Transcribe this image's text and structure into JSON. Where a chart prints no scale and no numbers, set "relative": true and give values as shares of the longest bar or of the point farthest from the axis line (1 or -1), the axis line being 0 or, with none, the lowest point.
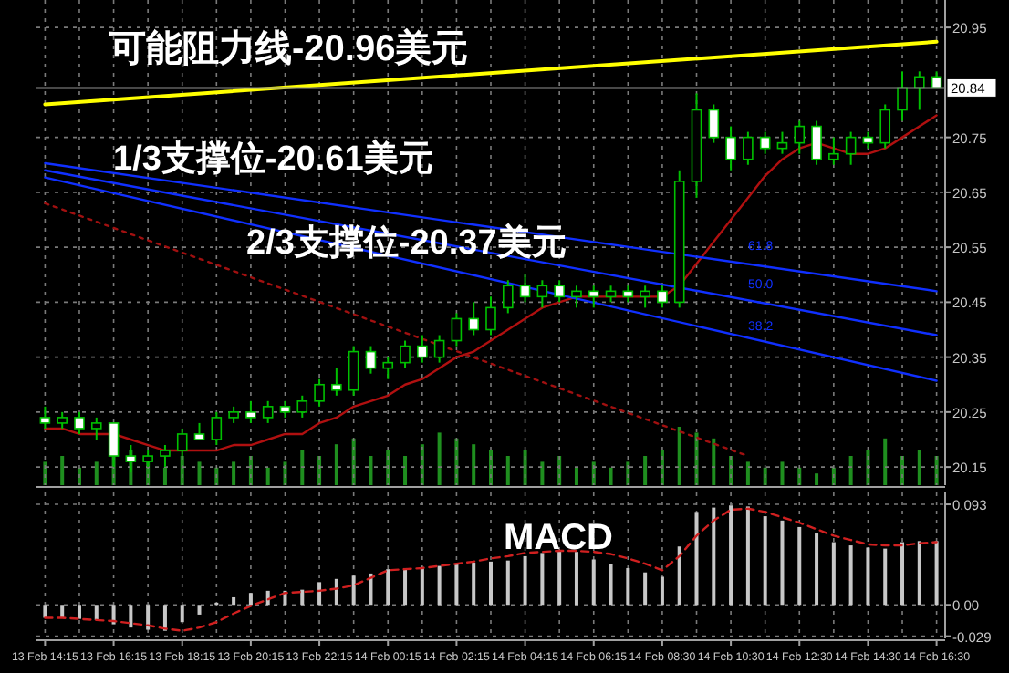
{
  "chart_data": [
    {
      "type": "candlestick",
      "color": "#00c000",
      "ohlc": [
        [
          20.24,
          20.26,
          20.22,
          20.23
        ],
        [
          20.23,
          20.25,
          20.22,
          20.24
        ],
        [
          20.24,
          20.25,
          20.21,
          20.22
        ],
        [
          20.22,
          20.24,
          20.2,
          20.23
        ],
        [
          20.23,
          20.23,
          20.15,
          20.17
        ],
        [
          20.17,
          20.19,
          20.14,
          20.16
        ],
        [
          20.16,
          20.18,
          20.15,
          20.17
        ],
        [
          20.17,
          20.19,
          20.15,
          20.18
        ],
        [
          20.18,
          20.22,
          20.17,
          20.21
        ],
        [
          20.21,
          20.23,
          20.2,
          20.2
        ],
        [
          20.2,
          20.25,
          20.19,
          20.24
        ],
        [
          20.24,
          20.26,
          20.23,
          20.25
        ],
        [
          20.25,
          20.27,
          20.23,
          20.24
        ],
        [
          20.24,
          20.27,
          20.23,
          20.26
        ],
        [
          20.26,
          20.27,
          20.24,
          20.25
        ],
        [
          20.25,
          20.28,
          20.24,
          20.27
        ],
        [
          20.27,
          20.31,
          20.26,
          20.3
        ],
        [
          20.3,
          20.33,
          20.28,
          20.29
        ],
        [
          20.29,
          20.37,
          20.28,
          20.36
        ],
        [
          20.36,
          20.37,
          20.32,
          20.33
        ],
        [
          20.33,
          20.35,
          20.31,
          20.34
        ],
        [
          20.34,
          20.38,
          20.33,
          20.37
        ],
        [
          20.37,
          20.39,
          20.34,
          20.35
        ],
        [
          20.35,
          20.39,
          20.34,
          20.38
        ],
        [
          20.38,
          20.43,
          20.37,
          20.42
        ],
        [
          20.42,
          20.45,
          20.39,
          20.4
        ],
        [
          20.4,
          20.46,
          20.39,
          20.44
        ],
        [
          20.44,
          20.49,
          20.43,
          20.48
        ],
        [
          20.48,
          20.5,
          20.45,
          20.46
        ],
        [
          20.46,
          20.49,
          20.44,
          20.48
        ],
        [
          20.48,
          20.49,
          20.45,
          20.46
        ],
        [
          20.46,
          20.48,
          20.44,
          20.47
        ],
        [
          20.47,
          20.48,
          20.44,
          20.46
        ],
        [
          20.46,
          20.48,
          20.45,
          20.47
        ],
        [
          20.47,
          20.48,
          20.45,
          20.46
        ],
        [
          20.46,
          20.48,
          20.44,
          20.47
        ],
        [
          20.47,
          20.48,
          20.44,
          20.45
        ],
        [
          20.45,
          20.69,
          20.44,
          20.67
        ],
        [
          20.67,
          20.83,
          20.64,
          20.8
        ],
        [
          20.8,
          20.81,
          20.74,
          20.75
        ],
        [
          20.75,
          20.77,
          20.69,
          20.71
        ],
        [
          20.71,
          20.76,
          20.7,
          20.75
        ],
        [
          20.75,
          20.76,
          20.72,
          20.73
        ],
        [
          20.73,
          20.76,
          20.72,
          20.74
        ],
        [
          20.74,
          20.78,
          20.72,
          20.77
        ],
        [
          20.77,
          20.78,
          20.7,
          20.71
        ],
        [
          20.71,
          20.75,
          20.7,
          20.72
        ],
        [
          20.72,
          20.76,
          20.7,
          20.75
        ],
        [
          20.75,
          20.76,
          20.73,
          20.74
        ],
        [
          20.74,
          20.81,
          20.73,
          20.8
        ],
        [
          20.8,
          20.87,
          20.78,
          20.84
        ],
        [
          20.84,
          20.87,
          20.8,
          20.86
        ],
        [
          20.86,
          20.87,
          20.84,
          20.84
        ]
      ],
      "series": [
        {
          "type": "line",
          "color": "#b01010",
          "line_style": "solid",
          "values": [
            20.22,
            20.22,
            20.21,
            20.21,
            20.21,
            20.2,
            20.19,
            20.18,
            20.18,
            20.18,
            20.18,
            20.19,
            20.19,
            20.2,
            20.21,
            20.21,
            20.23,
            20.24,
            20.26,
            20.27,
            20.28,
            20.3,
            20.31,
            20.33,
            20.35,
            20.36,
            20.38,
            20.4,
            20.42,
            20.44,
            20.45,
            20.46,
            20.46,
            20.46,
            20.46,
            20.46,
            20.46,
            20.48,
            20.52,
            20.56,
            20.6,
            20.64,
            20.68,
            20.71,
            20.73,
            20.74,
            20.73,
            20.72,
            20.72,
            20.73,
            20.75,
            20.77,
            20.79
          ]
        },
        {
          "type": "line",
          "color": "#ffff00",
          "line_style": "solid",
          "values": [
            20.81,
            null,
            null,
            null,
            null,
            null,
            null,
            null,
            null,
            null,
            null,
            null,
            null,
            null,
            null,
            null,
            null,
            null,
            null,
            null,
            null,
            null,
            null,
            null,
            null,
            null,
            null,
            null,
            null,
            null,
            null,
            null,
            null,
            null,
            null,
            null,
            null,
            null,
            null,
            null,
            null,
            null,
            null,
            null,
            null,
            null,
            null,
            null,
            null,
            null,
            null,
            null,
            20.924
          ]
        },
        {
          "type": "line",
          "color": "#1030ff",
          "line_style": "solid",
          "values": [
            20.703,
            null,
            null,
            null,
            null,
            null,
            null,
            null,
            null,
            null,
            null,
            null,
            null,
            null,
            null,
            null,
            null,
            null,
            null,
            null,
            null,
            null,
            null,
            null,
            null,
            null,
            null,
            null,
            null,
            null,
            null,
            null,
            null,
            null,
            null,
            null,
            null,
            null,
            null,
            null,
            null,
            null,
            null,
            null,
            null,
            null,
            null,
            null,
            null,
            null,
            null,
            null,
            20.47
          ]
        },
        {
          "type": "line",
          "color": "#1030ff",
          "line_style": "solid",
          "values": [
            20.69,
            null,
            null,
            null,
            null,
            null,
            null,
            null,
            null,
            null,
            null,
            null,
            null,
            null,
            null,
            null,
            null,
            null,
            null,
            null,
            null,
            null,
            null,
            null,
            null,
            null,
            null,
            null,
            null,
            null,
            null,
            null,
            null,
            null,
            null,
            null,
            null,
            null,
            null,
            null,
            null,
            null,
            null,
            null,
            null,
            null,
            null,
            null,
            null,
            null,
            null,
            null,
            20.39
          ]
        },
        {
          "type": "line",
          "color": "#1030ff",
          "line_style": "solid",
          "values": [
            20.677,
            null,
            null,
            null,
            null,
            null,
            null,
            null,
            null,
            null,
            null,
            null,
            null,
            null,
            null,
            null,
            null,
            null,
            null,
            null,
            null,
            null,
            null,
            null,
            null,
            null,
            null,
            null,
            null,
            null,
            null,
            null,
            null,
            null,
            null,
            null,
            null,
            null,
            null,
            null,
            null,
            null,
            null,
            null,
            null,
            null,
            null,
            null,
            null,
            null,
            null,
            null,
            20.307
          ]
        },
        {
          "type": "line",
          "color": "#a01010",
          "line_style": "dotted",
          "values": [
            20.63,
            null,
            null,
            null,
            null,
            null,
            null,
            null,
            null,
            null,
            null,
            null,
            null,
            null,
            null,
            null,
            null,
            null,
            null,
            null,
            null,
            null,
            null,
            null,
            null,
            null,
            null,
            null,
            null,
            null,
            null,
            null,
            null,
            null,
            null,
            null,
            null,
            null,
            null,
            null,
            null,
            20.17,
            null,
            null,
            null,
            null,
            null,
            null,
            null,
            null,
            null,
            null,
            null
          ]
        }
      ],
      "ylim": [
        20.117,
        21.0
      ],
      "yticks": [
        20.15,
        20.25,
        20.35,
        20.45,
        20.55,
        20.65,
        20.75,
        20.95
      ],
      "ref_lines": [
        {
          "axis": "y",
          "value": 20.84,
          "label": "20.84",
          "color": "#909090"
        }
      ],
      "annotations": [
        "可能阻力线-20.96美元",
        "1/3支撑位-20.61美元",
        "2/3支撑位-20.37美元",
        "61.8",
        "50.0",
        "38.2"
      ],
      "grid": true,
      "tick_labels": "y"
    },
    {
      "type": "bar",
      "relative": true,
      "color": "#1f8f1f",
      "values": [
        0.4,
        0.5,
        0.3,
        0.4,
        0.5,
        0.6,
        0.4,
        0.3,
        0.5,
        0.4,
        0.3,
        0.4,
        0.5,
        0.3,
        0.4,
        0.6,
        0.5,
        0.7,
        0.8,
        0.5,
        0.6,
        0.5,
        0.7,
        0.9,
        0.8,
        0.7,
        0.6,
        0.5,
        0.6,
        0.4,
        0.5,
        0.3,
        0.4,
        0.3,
        0.4,
        0.5,
        0.6,
        1,
        0.9,
        0.8,
        0.5,
        0.4,
        0.3,
        0.4,
        0.3,
        0.2,
        0.3,
        0.5,
        0.6,
        0.8,
        0.5,
        0.6,
        0.5
      ],
      "tick_labels": false
    },
    {
      "type": "bar",
      "title": "MACD",
      "categories": [
        "13 Feb 14:15",
        null,
        null,
        null,
        "13 Feb 16:15",
        null,
        null,
        null,
        "13 Feb 18:15",
        null,
        null,
        null,
        "13 Feb 20:15",
        null,
        null,
        null,
        "13 Feb 22:15",
        null,
        null,
        null,
        "14 Feb 00:15",
        null,
        null,
        null,
        "14 Feb 02:15",
        null,
        null,
        null,
        "14 Feb 04:15",
        null,
        null,
        null,
        "14 Feb 06:15",
        null,
        null,
        null,
        "14 Feb 08:30",
        null,
        null,
        null,
        "14 Feb 10:30",
        null,
        null,
        null,
        "14 Feb 12:30",
        null,
        null,
        null,
        "14 Feb 14:30",
        null,
        null,
        null,
        "14 Feb 16:30"
      ],
      "series": [
        {
          "type": "bar",
          "color": "#c8c8c8",
          "values": [
            -0.012,
            -0.012,
            -0.013,
            -0.014,
            -0.018,
            -0.021,
            -0.023,
            -0.024,
            -0.016,
            -0.009,
            0.002,
            0.007,
            0.011,
            0.013,
            0.013,
            0.014,
            0.021,
            0.024,
            0.027,
            0.029,
            0.033,
            0.034,
            0.035,
            0.036,
            0.038,
            0.039,
            0.04,
            0.041,
            0.045,
            0.048,
            0.05,
            0.049,
            0.042,
            0.038,
            0.034,
            0.03,
            0.026,
            0.054,
            0.086,
            0.09,
            0.092,
            0.091,
            0.082,
            0.078,
            0.072,
            0.066,
            0.058,
            0.055,
            0.053,
            0.052,
            0.058,
            0.059,
            0.059
          ]
        },
        {
          "type": "line",
          "color": "#d02020",
          "line_style": "dashed",
          "values": [
            -0.012,
            -0.012,
            -0.013,
            -0.014,
            -0.015,
            -0.017,
            -0.019,
            -0.022,
            -0.024,
            -0.021,
            -0.016,
            -0.008,
            -0.001,
            0.005,
            0.011,
            0.012,
            0.013,
            0.015,
            0.018,
            0.025,
            0.032,
            0.033,
            0.034,
            0.036,
            0.038,
            0.04,
            0.043,
            0.045,
            0.048,
            0.049,
            0.05,
            0.05,
            0.049,
            0.047,
            0.043,
            0.038,
            0.032,
            0.045,
            0.064,
            0.078,
            0.088,
            0.089,
            0.086,
            0.081,
            0.076,
            0.07,
            0.064,
            0.06,
            0.056,
            0.055,
            0.055,
            0.057,
            0.058
          ]
        }
      ],
      "ylim": [
        -0.031,
        0.104
      ],
      "yticks": [
        0.093,
        {
          "value": 0,
          "label": "0.00"
        },
        -0.029
      ],
      "grid": true
    }
  ]
}
